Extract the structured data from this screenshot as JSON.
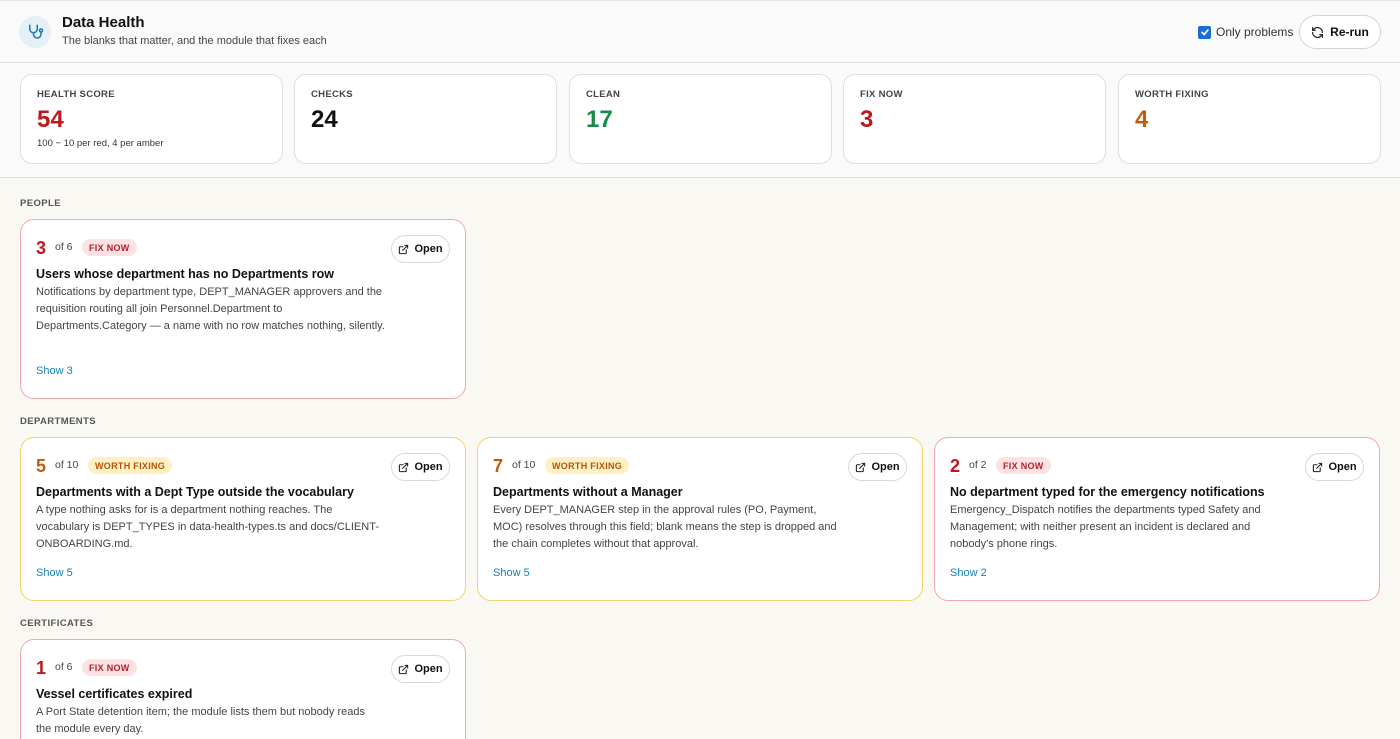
{
  "header": {
    "title": "Data Health",
    "subtitle": "The blanks that matter, and the module that fixes each",
    "app_icon": "stethoscope-icon",
    "only_problems_label": "Only problems",
    "only_problems_checked": true,
    "rerun_label": "Re-run",
    "rerun_icon": "refresh-icon"
  },
  "stats": [
    {
      "label": "HEALTH SCORE",
      "value": "54",
      "note": "100 − 10 per red, 4 per amber",
      "color": "#c0161f"
    },
    {
      "label": "CHECKS",
      "value": "24",
      "note": "",
      "color": "#111111"
    },
    {
      "label": "CLEAN",
      "value": "17",
      "note": "",
      "color": "#178a4a"
    },
    {
      "label": "FIX NOW",
      "value": "3",
      "note": "",
      "color": "#c0161f"
    },
    {
      "label": "WORTH FIXING",
      "value": "4",
      "note": "",
      "color": "#c25b0a"
    }
  ],
  "sections": [
    {
      "label": "PEOPLE",
      "cards": [
        {
          "count": "3",
          "of": "of 6",
          "badge": "FIX NOW",
          "severity": "red",
          "open_label": "Open",
          "title": "Users whose department has no Departments row",
          "description": "Notifications by department type, DEPT_MANAGER approvers and the requisition routing all join Personnel.Department to Departments.Category — a name with no row matches nothing, silently.",
          "show_label": "Show 3"
        }
      ]
    },
    {
      "label": "DEPARTMENTS",
      "cards": [
        {
          "count": "5",
          "of": "of 10",
          "badge": "WORTH FIXING",
          "severity": "amber",
          "open_label": "Open",
          "title": "Departments with a Dept Type outside the vocabulary",
          "description": "A type nothing asks for is a department nothing reaches. The vocabulary is DEPT_TYPES in data-health-types.ts and docs/CLIENT-ONBOARDING.md.",
          "show_label": "Show 5"
        },
        {
          "count": "7",
          "of": "of 10",
          "badge": "WORTH FIXING",
          "severity": "amber",
          "open_label": "Open",
          "title": "Departments without a Manager",
          "description": "Every DEPT_MANAGER step in the approval rules (PO, Payment, MOC) resolves through this field; blank means the step is dropped and the chain completes without that approval.",
          "show_label": "Show 5"
        },
        {
          "count": "2",
          "of": "of 2",
          "badge": "FIX NOW",
          "severity": "red",
          "open_label": "Open",
          "title": "No department typed for the emergency notifications",
          "description": "Emergency_Dispatch notifies the departments typed Safety and Management; with neither present an incident is declared and nobody's phone rings.",
          "show_label": "Show 2"
        }
      ]
    },
    {
      "label": "CERTIFICATES",
      "cards": [
        {
          "count": "1",
          "of": "of 6",
          "badge": "FIX NOW",
          "severity": "red",
          "open_label": "Open",
          "title": "Vessel certificates expired",
          "description": "A Port State detention item; the module lists them but nobody reads the module every day.",
          "show_label": ""
        }
      ]
    }
  ]
}
